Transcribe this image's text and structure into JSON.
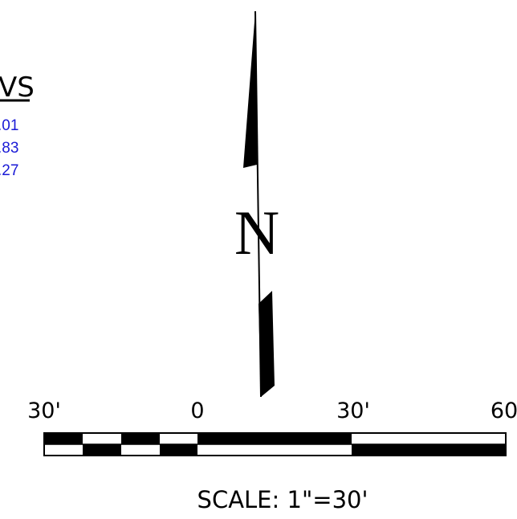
{
  "partial_heading": "VS",
  "partial_values": [
    ".01",
    ".83",
    ".27"
  ],
  "north_arrow": {
    "letter": "N"
  },
  "scale_bar": {
    "labels": [
      "30'",
      "0",
      "30'",
      "60"
    ],
    "caption": "SCALE: 1\"=30'"
  },
  "colors": {
    "ink": "#000000",
    "values": "#1a1ad6"
  }
}
